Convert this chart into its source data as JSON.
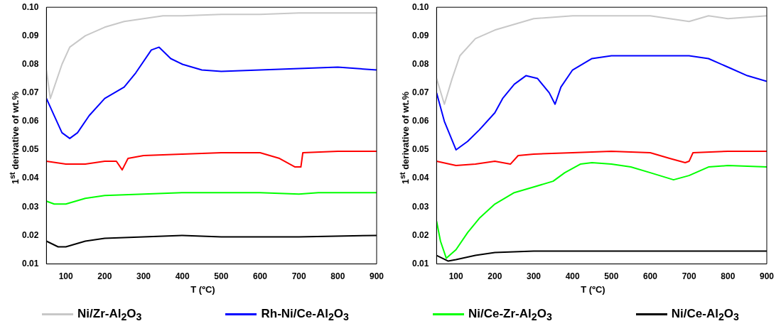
{
  "chart_data": [
    {
      "type": "line",
      "xlabel": "T (ºC)",
      "ylabel": "1$^{st}$ derivative of wt.%",
      "xlim": [
        50,
        900
      ],
      "xticks": [
        100,
        200,
        300,
        400,
        500,
        600,
        700,
        800,
        900
      ],
      "ylim": [
        0.01,
        0.1
      ],
      "yticks": [
        0.01,
        0.02,
        0.03,
        0.04,
        0.05,
        0.06,
        0.07,
        0.08,
        0.09,
        {
          "value": 0.1,
          "label": "0.10"
        }
      ],
      "grid": false,
      "legend": "bottom",
      "series": [
        {
          "name": "Ni/Zr-Al$_{2}$O$_{3}$",
          "color": "#c8c8c8",
          "x": [
            50,
            60,
            70,
            90,
            110,
            150,
            200,
            250,
            300,
            350,
            400,
            500,
            600,
            700,
            800,
            900
          ],
          "values": [
            0.078,
            0.068,
            0.072,
            0.08,
            0.086,
            0.09,
            0.093,
            0.095,
            0.096,
            0.097,
            0.097,
            0.0975,
            0.0975,
            0.098,
            0.098,
            0.098
          ]
        },
        {
          "name": "Rh-Ni/Ce-Al$_{2}$O$_{3}$",
          "color": "#0000ff",
          "x": [
            50,
            70,
            90,
            110,
            130,
            160,
            200,
            250,
            280,
            320,
            340,
            370,
            400,
            450,
            500,
            600,
            700,
            800,
            900
          ],
          "values": [
            0.068,
            0.062,
            0.056,
            0.054,
            0.056,
            0.062,
            0.068,
            0.072,
            0.077,
            0.085,
            0.086,
            0.082,
            0.08,
            0.078,
            0.0775,
            0.078,
            0.0785,
            0.079,
            0.078
          ]
        },
        {
          "color": "#ff0000",
          "x": [
            50,
            100,
            150,
            200,
            230,
            245,
            260,
            300,
            400,
            500,
            600,
            650,
            690,
            705,
            710,
            800,
            900
          ],
          "values": [
            0.046,
            0.045,
            0.045,
            0.046,
            0.046,
            0.043,
            0.047,
            0.048,
            0.0485,
            0.049,
            0.049,
            0.047,
            0.044,
            0.044,
            0.049,
            0.0495,
            0.0495
          ]
        },
        {
          "name": "Ni/Ce-Zr-Al$_{2}$O$_{3}$",
          "color": "#00ff00",
          "x": [
            50,
            70,
            100,
            150,
            200,
            300,
            400,
            500,
            600,
            700,
            750,
            900
          ],
          "values": [
            0.032,
            0.031,
            0.031,
            0.033,
            0.034,
            0.0345,
            0.035,
            0.035,
            0.035,
            0.0345,
            0.035,
            0.035
          ]
        },
        {
          "name": "Ni/Ce-Al$_{2}$O$_{3}$",
          "color": "#000000",
          "x": [
            50,
            80,
            100,
            150,
            200,
            300,
            400,
            500,
            600,
            700,
            900
          ],
          "values": [
            0.018,
            0.016,
            0.016,
            0.018,
            0.019,
            0.0195,
            0.02,
            0.0195,
            0.0195,
            0.0195,
            0.02
          ]
        }
      ]
    },
    {
      "type": "line",
      "xlabel": "T (ºC)",
      "ylabel": "1$^{st}$ derivative of wt.%",
      "xlim": [
        50,
        900
      ],
      "xticks": [
        100,
        200,
        300,
        400,
        500,
        600,
        700,
        800,
        900
      ],
      "ylim": [
        0.01,
        0.1
      ],
      "yticks": [
        0.01,
        0.02,
        0.03,
        0.04,
        0.05,
        0.06,
        0.07,
        0.08,
        0.09,
        {
          "value": 0.1,
          "label": "0.10"
        }
      ],
      "grid": false,
      "legend": "bottom",
      "series": [
        {
          "name": "Ni/Zr-Al$_{2}$O$_{3}$",
          "color": "#c8c8c8",
          "x": [
            50,
            70,
            90,
            110,
            150,
            200,
            250,
            300,
            400,
            500,
            600,
            650,
            700,
            750,
            800,
            900
          ],
          "values": [
            0.075,
            0.066,
            0.075,
            0.083,
            0.089,
            0.092,
            0.094,
            0.096,
            0.097,
            0.097,
            0.097,
            0.096,
            0.095,
            0.097,
            0.096,
            0.097
          ]
        },
        {
          "name": "Rh-Ni/Ce-Al$_{2}$O$_{3}$",
          "color": "#0000ff",
          "x": [
            50,
            70,
            100,
            130,
            160,
            200,
            220,
            250,
            280,
            310,
            340,
            355,
            370,
            400,
            450,
            500,
            600,
            700,
            750,
            800,
            850,
            900
          ],
          "values": [
            0.07,
            0.06,
            0.05,
            0.053,
            0.057,
            0.063,
            0.068,
            0.073,
            0.076,
            0.075,
            0.07,
            0.066,
            0.072,
            0.078,
            0.082,
            0.083,
            0.083,
            0.083,
            0.082,
            0.079,
            0.076,
            0.074
          ]
        },
        {
          "color": "#ff0000",
          "x": [
            50,
            100,
            150,
            200,
            240,
            260,
            300,
            400,
            500,
            600,
            650,
            690,
            700,
            710,
            800,
            900
          ],
          "values": [
            0.046,
            0.0445,
            0.045,
            0.046,
            0.045,
            0.048,
            0.0485,
            0.049,
            0.0495,
            0.049,
            0.047,
            0.0455,
            0.046,
            0.049,
            0.0495,
            0.0495
          ]
        },
        {
          "name": "Ni/Ce-Zr-Al$_{2}$O$_{3}$",
          "color": "#00ff00",
          "x": [
            50,
            60,
            75,
            100,
            130,
            160,
            200,
            250,
            300,
            350,
            380,
            420,
            450,
            500,
            550,
            600,
            660,
            700,
            750,
            800,
            900
          ],
          "values": [
            0.025,
            0.018,
            0.012,
            0.015,
            0.021,
            0.026,
            0.031,
            0.035,
            0.037,
            0.039,
            0.042,
            0.045,
            0.0455,
            0.045,
            0.044,
            0.042,
            0.0395,
            0.041,
            0.044,
            0.0445,
            0.044
          ]
        },
        {
          "name": "Ni/Ce-Al$_{2}$O$_{3}$",
          "color": "#000000",
          "x": [
            50,
            80,
            100,
            150,
            200,
            300,
            500,
            900
          ],
          "values": [
            0.013,
            0.011,
            0.0115,
            0.013,
            0.014,
            0.0145,
            0.0145,
            0.0145
          ]
        }
      ]
    }
  ]
}
